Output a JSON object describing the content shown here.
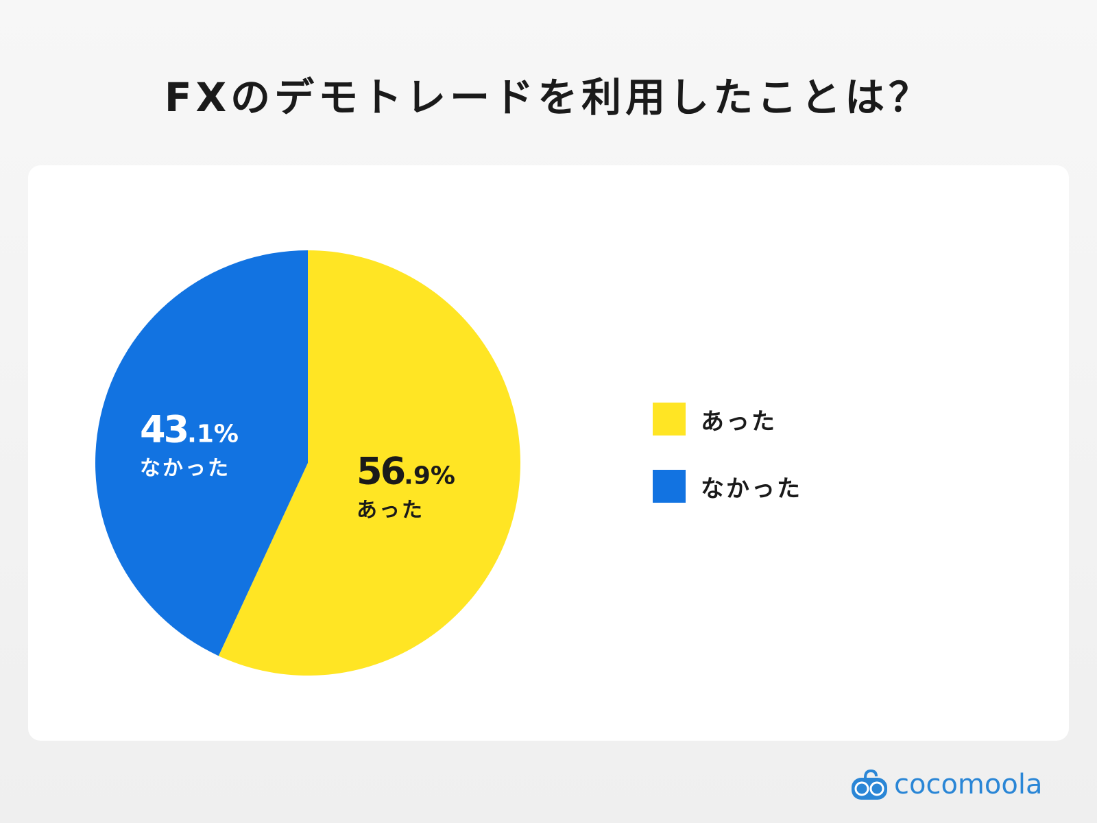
{
  "chart_data": {
    "type": "pie",
    "title": "FXのデモトレードを利用したことは？",
    "slices": [
      {
        "label": "あった",
        "value": 56.9,
        "value_int": "56",
        "value_dec": ".9%",
        "color": "#ffe524",
        "text_color": "#1a1a1a"
      },
      {
        "label": "なかった",
        "value": 43.1,
        "value_int": "43",
        "value_dec": ".1%",
        "color": "#1273e1",
        "text_color": "#ffffff"
      }
    ],
    "start": "top",
    "direction": "clockwise",
    "legend_position": "right"
  },
  "brand": {
    "logo_text": "cocomoola",
    "color": "#2a86d6"
  }
}
